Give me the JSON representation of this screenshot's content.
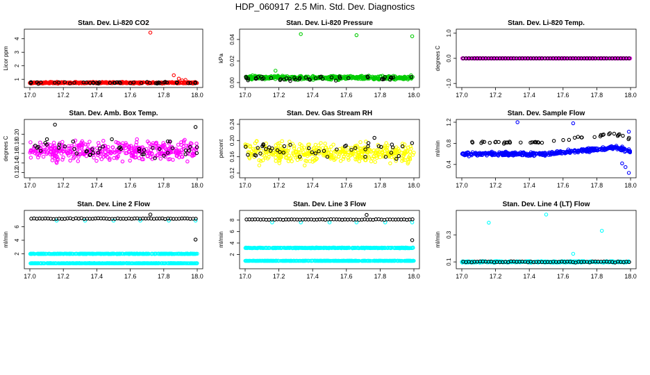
{
  "page": {
    "title": "HDP_060917  2.5 Min. Std. Dev. Diagnostics"
  },
  "colors": {
    "black": "#000000",
    "red": "#ff0000",
    "green": "#00cc00",
    "magenta": "#ff00ff",
    "yellow": "#ffff00",
    "blue": "#0000ff",
    "cyan": "#00ffff"
  },
  "chart_data": [
    {
      "type": "scatter",
      "title": "Stan. Dev. Li-820 CO2",
      "ylabel": "Licor ppm",
      "xlim": [
        17.0,
        18.0
      ],
      "x_ticks": [
        "17.0",
        "17.2",
        "17.4",
        "17.6",
        "17.8",
        "18.0"
      ],
      "ylim": [
        0.6,
        4.5
      ],
      "y_ticks": [
        {
          "v": 1,
          "l": "1"
        },
        {
          "v": 2,
          "l": "2"
        },
        {
          "v": 3,
          "l": "3"
        },
        {
          "v": 4,
          "l": "4"
        }
      ],
      "series": [
        {
          "color": "#ff0000",
          "baseline": 0.75,
          "spread": 0.08,
          "outliers": [
            [
              17.72,
              4.45
            ],
            [
              17.86,
              1.3
            ],
            [
              17.89,
              1.05
            ],
            [
              17.91,
              0.92
            ],
            [
              17.93,
              0.95
            ]
          ]
        },
        {
          "color": "#000000",
          "baseline": 0.75,
          "spread": 0.1,
          "sparse": true,
          "outliers": []
        }
      ]
    },
    {
      "type": "scatter",
      "title": "Stan. Dev. Li-820 Pressure",
      "ylabel": "kPa",
      "xlim": [
        17.0,
        18.0
      ],
      "x_ticks": [
        "17.0",
        "17.2",
        "17.4",
        "17.6",
        "17.8",
        "18.0"
      ],
      "ylim": [
        -0.002,
        0.047
      ],
      "y_ticks": [
        {
          "v": 0,
          "l": "0.00"
        },
        {
          "v": 0.02,
          "l": "0.02"
        },
        {
          "v": 0.04,
          "l": "0.04"
        }
      ],
      "series": [
        {
          "color": "#00cc00",
          "baseline": 0.0045,
          "spread": 0.0025,
          "outliers": [
            [
              17.33,
              0.045
            ],
            [
              17.66,
              0.044
            ],
            [
              17.99,
              0.043
            ],
            [
              17.18,
              0.011
            ]
          ]
        },
        {
          "color": "#000000",
          "baseline": 0.004,
          "spread": 0.003,
          "sparse": true,
          "outliers": []
        }
      ]
    },
    {
      "type": "scatter",
      "title": "Stan. Dev. Li-820 Temp.",
      "ylabel": "degrees C",
      "xlim": [
        17.0,
        18.0
      ],
      "x_ticks": [
        "17.0",
        "17.2",
        "17.4",
        "17.6",
        "17.8",
        "18.0"
      ],
      "ylim": [
        -1.05,
        1.05
      ],
      "y_ticks": [
        {
          "v": -1,
          "l": "-1.0"
        },
        {
          "v": 0,
          "l": "0.0"
        },
        {
          "v": 1,
          "l": "1.0"
        }
      ],
      "series": [
        {
          "color": "#ff00ff",
          "baseline": 0.0,
          "spread": 0.0,
          "outliers": []
        },
        {
          "color": "#000000",
          "baseline": 0.0,
          "spread": 0.0,
          "regular": true,
          "outliers": []
        }
      ]
    },
    {
      "type": "scatter",
      "title": "Stan. Dev. Amb. Box Temp.",
      "ylabel": "degrees C",
      "xlim": [
        17.0,
        18.0
      ],
      "x_ticks": [
        "17.0",
        "17.2",
        "17.4",
        "17.6",
        "17.8",
        "18.0"
      ],
      "ylim": [
        0.115,
        0.225
      ],
      "y_ticks": [
        {
          "v": 0.12,
          "l": "0.12"
        },
        {
          "v": 0.14,
          "l": "0.14"
        },
        {
          "v": 0.16,
          "l": "0.16"
        },
        {
          "v": 0.18,
          "l": "0.18"
        },
        {
          "v": 0.2,
          "l": "0.20"
        }
      ],
      "series": [
        {
          "color": "#ff00ff",
          "baseline": 0.165,
          "spread": 0.028,
          "outliers": []
        },
        {
          "color": "#000000",
          "baseline": 0.17,
          "spread": 0.03,
          "sparse": true,
          "outliers": [
            [
              17.15,
              0.22
            ],
            [
              17.99,
              0.215
            ]
          ]
        }
      ]
    },
    {
      "type": "scatter",
      "title": "Stan. Dev. Gas Stream RH",
      "ylabel": "percent",
      "xlim": [
        17.0,
        18.0
      ],
      "x_ticks": [
        "17.0",
        "17.2",
        "17.4",
        "17.6",
        "17.8",
        "18.0"
      ],
      "ylim": [
        0.115,
        0.245
      ],
      "y_ticks": [
        {
          "v": 0.12,
          "l": "0.12"
        },
        {
          "v": 0.16,
          "l": "0.16"
        },
        {
          "v": 0.2,
          "l": "0.20"
        },
        {
          "v": 0.24,
          "l": "0.24"
        }
      ],
      "series": [
        {
          "color": "#ffff00",
          "baseline": 0.17,
          "spread": 0.035,
          "outliers": []
        },
        {
          "color": "#000000",
          "baseline": 0.18,
          "spread": 0.035,
          "sparse": true,
          "outliers": []
        }
      ]
    },
    {
      "type": "scatter",
      "title": "Stan. Dev. Sample Flow",
      "ylabel": "ml/min",
      "xlim": [
        17.0,
        18.0
      ],
      "x_ticks": [
        "17.0",
        "17.2",
        "17.4",
        "17.6",
        "17.8",
        "18.0"
      ],
      "ylim": [
        0.2,
        1.2
      ],
      "y_ticks": [
        {
          "v": 0.4,
          "l": "0.4"
        },
        {
          "v": 0.8,
          "l": "0.8"
        },
        {
          "v": 1.2,
          "l": "1.2"
        }
      ],
      "series": [
        {
          "color": "#0000ff",
          "baseline": 0.6,
          "spread": 0.05,
          "trend": 0.15,
          "outliers": [
            [
              17.33,
              1.2
            ],
            [
              17.66,
              1.18
            ],
            [
              17.99,
              1.02
            ],
            [
              17.97,
              0.35
            ],
            [
              17.99,
              0.24
            ],
            [
              17.95,
              0.42
            ]
          ]
        },
        {
          "color": "#000000",
          "baseline": 0.82,
          "spread": 0.04,
          "trend": 0.2,
          "sparse": true,
          "outliers": []
        }
      ]
    },
    {
      "type": "scatter",
      "title": "Stan. Dev. Line 2 Flow",
      "ylabel": "ml/min",
      "xlim": [
        17.0,
        18.0
      ],
      "x_ticks": [
        "17.0",
        "17.2",
        "17.4",
        "17.6",
        "17.8",
        "18.0"
      ],
      "ylim": [
        0.2,
        8.0
      ],
      "y_ticks": [
        {
          "v": 2,
          "l": "2"
        },
        {
          "v": 4,
          "l": "4"
        },
        {
          "v": 6,
          "l": "6"
        }
      ],
      "series": [
        {
          "color": "#00ffff",
          "baseline": 2.0,
          "spread": 0.06,
          "outliers": []
        },
        {
          "color": "#00ffff",
          "baseline": 0.6,
          "spread": 0.03,
          "outliers": [
            [
              17.16,
              6.9
            ],
            [
              17.33,
              6.9
            ],
            [
              17.5,
              6.9
            ],
            [
              17.66,
              6.9
            ],
            [
              17.83,
              6.9
            ],
            [
              17.99,
              6.9
            ]
          ]
        },
        {
          "color": "#000000",
          "baseline": 7.2,
          "spread": 0.08,
          "regular": true,
          "outliers": [
            [
              17.99,
              4.1
            ],
            [
              17.72,
              7.8
            ]
          ]
        }
      ]
    },
    {
      "type": "scatter",
      "title": "Stan. Dev. Line 3 Flow",
      "ylabel": "ml/min",
      "xlim": [
        17.0,
        18.0
      ],
      "x_ticks": [
        "17.0",
        "17.2",
        "17.4",
        "17.6",
        "17.8",
        "18.0"
      ],
      "ylim": [
        0.0,
        9.2
      ],
      "y_ticks": [
        {
          "v": 2,
          "l": "2"
        },
        {
          "v": 4,
          "l": "4"
        },
        {
          "v": 6,
          "l": "6"
        },
        {
          "v": 8,
          "l": "8"
        }
      ],
      "series": [
        {
          "color": "#00ffff",
          "baseline": 3.15,
          "spread": 0.1,
          "outliers": []
        },
        {
          "color": "#00ffff",
          "baseline": 0.9,
          "spread": 0.04,
          "outliers": [
            [
              17.16,
              7.6
            ],
            [
              17.33,
              7.6
            ],
            [
              17.5,
              7.6
            ],
            [
              17.66,
              7.6
            ],
            [
              17.83,
              7.6
            ],
            [
              17.99,
              7.6
            ]
          ]
        },
        {
          "color": "#000000",
          "baseline": 8.1,
          "spread": 0.08,
          "regular": true,
          "outliers": [
            [
              17.99,
              4.5
            ],
            [
              17.72,
              8.9
            ]
          ]
        }
      ]
    },
    {
      "type": "scatter",
      "title": "Stan. Dev. Line 4 (LT) Flow",
      "ylabel": "ml/min",
      "xlim": [
        17.0,
        18.0
      ],
      "x_ticks": [
        "17.0",
        "17.2",
        "17.4",
        "17.6",
        "17.8",
        "18.0"
      ],
      "ylim": [
        0.07,
        0.46
      ],
      "y_ticks": [
        {
          "v": 0.1,
          "l": "0.1"
        },
        {
          "v": 0.3,
          "l": "0.3"
        }
      ],
      "series": [
        {
          "color": "#00ffff",
          "baseline": 0.1,
          "spread": 0.008,
          "outliers": [
            [
              17.16,
              0.39
            ],
            [
              17.5,
              0.45
            ],
            [
              17.83,
              0.33
            ],
            [
              17.66,
              0.16
            ]
          ]
        },
        {
          "color": "#000000",
          "baseline": 0.1,
          "spread": 0.006,
          "regular": true,
          "outliers": []
        }
      ]
    }
  ]
}
